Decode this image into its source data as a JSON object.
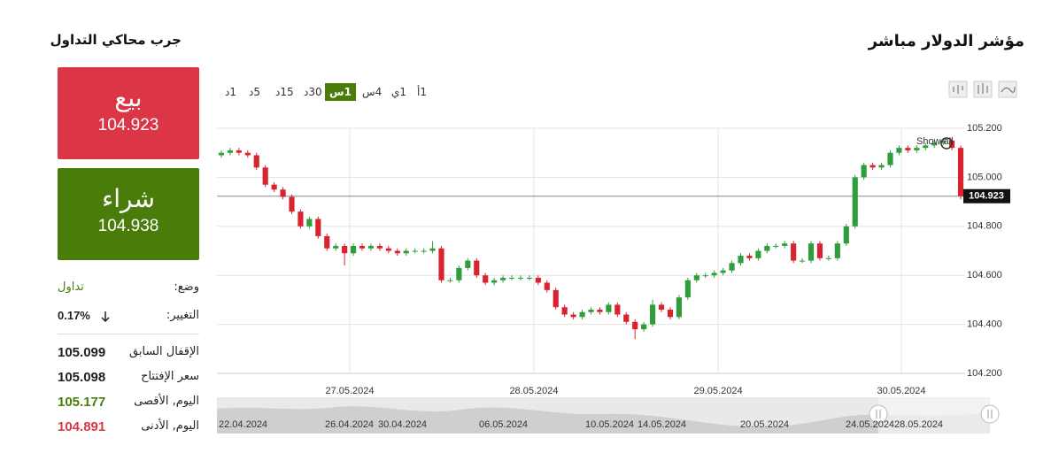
{
  "header": {
    "title": "مؤشر الدولار مباشر",
    "side_title": "جرب محاكي التداول"
  },
  "trade": {
    "sell_label": "بيع",
    "sell_price": "104.923",
    "buy_label": "شراء",
    "buy_price": "104.938"
  },
  "status": {
    "mode_label": "وضع:",
    "mode_value": "تداول",
    "change_label": "التغيير:",
    "change_value": "0.17%"
  },
  "stats": [
    {
      "label": "الإقفال السابق",
      "value": "105.099"
    },
    {
      "label": "سعر الإفتتاح",
      "value": "105.098"
    },
    {
      "label": "اليوم, الأقصى",
      "value": "105.177"
    },
    {
      "label": "اليوم, الأدنى",
      "value": "104.891"
    }
  ],
  "timeframes": [
    "1د",
    "5د",
    "15د",
    "30د",
    "1س",
    "4س",
    "1ي",
    "1أ"
  ],
  "active_timeframe": 4,
  "navigator": {
    "dates": [
      "22.04.2024",
      "26.04.2024",
      "30.04.2024",
      "06.05.2024",
      "10.05.2024",
      "14.05.2024",
      "20.05.2024",
      "24.05.2024",
      "28.05.2024"
    ]
  },
  "chart_data": {
    "type": "candlestick",
    "annotation": "Show all",
    "last_price": 104.923,
    "up_color": "#2f9e3a",
    "down_color": "#d9232e",
    "ylim": [
      104.2,
      105.2
    ],
    "yticks": [
      {
        "value": 104.2,
        "label": "104.200"
      },
      {
        "value": 104.4,
        "label": "104.400"
      },
      {
        "value": 104.6,
        "label": "104.600"
      },
      {
        "value": 104.8,
        "label": "104.800"
      },
      {
        "value": 105.0,
        "label": "105.000"
      },
      {
        "value": 105.2,
        "label": "105.200"
      }
    ],
    "xlim": [
      -0.5,
      84.5
    ],
    "xticks": [
      {
        "value": 14.59,
        "label": "27.05.2024"
      },
      {
        "value": 35.51,
        "label": "28.05.2024"
      },
      {
        "value": 56.44,
        "label": "29.05.2024"
      },
      {
        "value": 77.26,
        "label": "30.05.2024"
      }
    ],
    "grid": true,
    "open": [
      105.09,
      105.1,
      105.11,
      105.1,
      105.09,
      105.04,
      104.97,
      104.95,
      104.92,
      104.86,
      104.8,
      104.83,
      104.76,
      104.71,
      104.72,
      104.69,
      104.72,
      104.71,
      104.72,
      104.71,
      104.7,
      104.69,
      104.7,
      104.7,
      104.7,
      104.71,
      104.58,
      104.58,
      104.63,
      104.66,
      104.6,
      104.57,
      104.58,
      104.59,
      104.59,
      104.59,
      104.59,
      104.57,
      104.54,
      104.47,
      104.44,
      104.43,
      104.45,
      104.46,
      104.45,
      104.48,
      104.44,
      104.41,
      104.38,
      104.4,
      104.48,
      104.46,
      104.43,
      104.51,
      104.58,
      104.6,
      104.6,
      104.61,
      104.62,
      104.65,
      104.68,
      104.67,
      104.7,
      104.72,
      104.72,
      104.73,
      104.66,
      104.66,
      104.73,
      104.67,
      104.67,
      104.73,
      104.8,
      105.0,
      105.05,
      105.04,
      105.05,
      105.1,
      105.12,
      105.11,
      105.12,
      105.13,
      105.14,
      105.15,
      105.12
    ],
    "high": [
      105.11,
      105.12,
      105.12,
      105.11,
      105.1,
      105.05,
      104.98,
      104.96,
      104.93,
      104.87,
      104.84,
      104.84,
      104.77,
      104.73,
      104.73,
      104.73,
      104.73,
      104.73,
      104.73,
      104.72,
      104.71,
      104.71,
      104.71,
      104.71,
      104.74,
      104.72,
      104.59,
      104.64,
      104.67,
      104.67,
      104.61,
      104.59,
      104.6,
      104.6,
      104.6,
      104.6,
      104.6,
      104.58,
      104.55,
      104.48,
      104.45,
      104.46,
      104.47,
      104.47,
      104.49,
      104.49,
      104.45,
      104.42,
      104.41,
      104.5,
      104.49,
      104.47,
      104.52,
      104.59,
      104.61,
      104.61,
      104.62,
      104.63,
      104.66,
      104.69,
      104.69,
      104.71,
      104.73,
      104.73,
      104.74,
      104.74,
      104.67,
      104.74,
      104.74,
      104.68,
      104.74,
      104.81,
      105.01,
      105.06,
      105.06,
      105.06,
      105.11,
      105.13,
      105.13,
      105.13,
      105.14,
      105.15,
      105.16,
      105.16,
      105.13
    ],
    "low": [
      105.08,
      105.09,
      105.09,
      105.08,
      105.03,
      104.96,
      104.94,
      104.91,
      104.85,
      104.79,
      104.79,
      104.75,
      104.7,
      104.7,
      104.64,
      104.68,
      104.7,
      104.7,
      104.7,
      104.69,
      104.68,
      104.68,
      104.69,
      104.69,
      104.69,
      104.57,
      104.57,
      104.57,
      104.62,
      104.59,
      104.56,
      104.56,
      104.57,
      104.58,
      104.58,
      104.58,
      104.56,
      104.53,
      104.46,
      104.43,
      104.42,
      104.42,
      104.44,
      104.44,
      104.44,
      104.43,
      104.4,
      104.34,
      104.37,
      104.39,
      104.45,
      104.42,
      104.42,
      104.5,
      104.57,
      104.59,
      104.59,
      104.6,
      104.61,
      104.64,
      104.66,
      104.66,
      104.69,
      104.71,
      104.71,
      104.65,
      104.65,
      104.65,
      104.66,
      104.66,
      104.66,
      104.72,
      104.79,
      104.99,
      105.03,
      105.03,
      105.04,
      105.09,
      105.1,
      105.1,
      105.11,
      105.12,
      105.13,
      105.11,
      104.91
    ],
    "close": [
      105.1,
      105.11,
      105.1,
      105.09,
      105.04,
      104.97,
      104.95,
      104.92,
      104.86,
      104.8,
      104.83,
      104.76,
      104.71,
      104.72,
      104.69,
      104.72,
      104.71,
      104.72,
      104.71,
      104.7,
      104.69,
      104.7,
      104.7,
      104.7,
      104.71,
      104.58,
      104.58,
      104.63,
      104.66,
      104.6,
      104.57,
      104.58,
      104.59,
      104.59,
      104.59,
      104.59,
      104.57,
      104.54,
      104.47,
      104.44,
      104.43,
      104.45,
      104.46,
      104.45,
      104.48,
      104.44,
      104.41,
      104.38,
      104.4,
      104.48,
      104.46,
      104.43,
      104.51,
      104.58,
      104.6,
      104.6,
      104.61,
      104.62,
      104.65,
      104.68,
      104.67,
      104.7,
      104.72,
      104.72,
      104.73,
      104.66,
      104.66,
      104.73,
      104.67,
      104.67,
      104.73,
      104.8,
      105.0,
      105.05,
      105.04,
      105.05,
      105.1,
      105.12,
      105.11,
      105.12,
      105.13,
      105.14,
      105.15,
      105.12,
      104.923
    ]
  }
}
